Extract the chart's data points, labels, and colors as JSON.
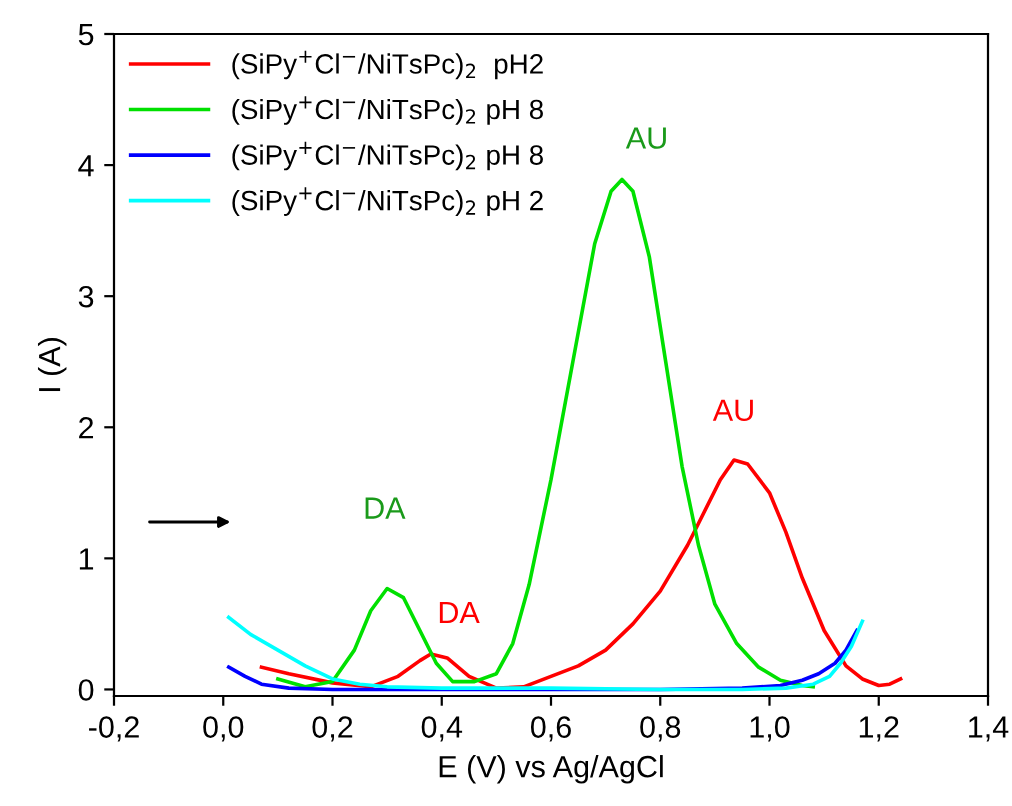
{
  "chart_data": {
    "type": "line",
    "xlabel": "E (V) vs Ag/AgCl",
    "ylabel": "I (A)",
    "xlim": [
      -0.2,
      1.4
    ],
    "ylim": [
      -0.05,
      5
    ],
    "xticks": [
      {
        "value": -0.2,
        "label": "-0,2"
      },
      {
        "value": 0.0,
        "label": "0,0"
      },
      {
        "value": 0.2,
        "label": "0,2"
      },
      {
        "value": 0.4,
        "label": "0,4"
      },
      {
        "value": 0.6,
        "label": "0,6"
      },
      {
        "value": 0.8,
        "label": "0,8"
      },
      {
        "value": 1.0,
        "label": "1,0"
      },
      {
        "value": 1.2,
        "label": "1,2"
      },
      {
        "value": 1.4,
        "label": "1,4"
      }
    ],
    "yticks": [
      0,
      1,
      2,
      3,
      4,
      5
    ],
    "grid": false,
    "legend": "top left",
    "marker": "none",
    "line_style": "solid",
    "series": [
      {
        "name": "(SiPy$^{+}$Cl$^{−}$/NiTsPc)$_{2}$  pH2",
        "color": "#ff0000",
        "x": [
          0.07,
          0.12,
          0.2,
          0.27,
          0.32,
          0.36,
          0.38,
          0.41,
          0.45,
          0.5,
          0.55,
          0.6,
          0.65,
          0.7,
          0.75,
          0.8,
          0.85,
          0.88,
          0.91,
          0.935,
          0.96,
          1.0,
          1.03,
          1.06,
          1.1,
          1.14,
          1.17,
          1.2,
          1.22,
          1.24
        ],
        "values": [
          0.17,
          0.12,
          0.05,
          0.02,
          0.1,
          0.22,
          0.27,
          0.24,
          0.1,
          0.01,
          0.02,
          0.1,
          0.18,
          0.3,
          0.5,
          0.75,
          1.1,
          1.35,
          1.6,
          1.75,
          1.72,
          1.5,
          1.2,
          0.85,
          0.45,
          0.18,
          0.08,
          0.03,
          0.04,
          0.08
        ]
      },
      {
        "name": "(SiPy$^{+}$Cl$^{−}$/NiTsPc)$_{2}$ pH 8",
        "color": "#00e000",
        "x": [
          0.1,
          0.15,
          0.2,
          0.24,
          0.27,
          0.3,
          0.33,
          0.36,
          0.39,
          0.42,
          0.46,
          0.5,
          0.53,
          0.56,
          0.6,
          0.64,
          0.68,
          0.71,
          0.73,
          0.75,
          0.78,
          0.81,
          0.84,
          0.87,
          0.9,
          0.94,
          0.98,
          1.02,
          1.06,
          1.08
        ],
        "values": [
          0.08,
          0.02,
          0.06,
          0.3,
          0.6,
          0.77,
          0.7,
          0.45,
          0.2,
          0.06,
          0.06,
          0.12,
          0.35,
          0.8,
          1.6,
          2.5,
          3.4,
          3.8,
          3.89,
          3.8,
          3.3,
          2.5,
          1.7,
          1.1,
          0.65,
          0.35,
          0.17,
          0.07,
          0.03,
          0.02
        ]
      },
      {
        "name": "(SiPy$^{+}$Cl$^{−}$/NiTsPc)$_{2}$ pH 8",
        "color": "#0000ff",
        "x": [
          0.01,
          0.04,
          0.07,
          0.12,
          0.2,
          0.4,
          0.6,
          0.8,
          0.95,
          1.02,
          1.06,
          1.09,
          1.12,
          1.14,
          1.16
        ],
        "values": [
          0.17,
          0.1,
          0.04,
          0.01,
          0.0,
          0.0,
          0.0,
          0.0,
          0.01,
          0.03,
          0.07,
          0.12,
          0.2,
          0.3,
          0.45
        ]
      },
      {
        "name": "(SiPy$^{+}$Cl$^{−}$/NiTsPc)$_{2}$ pH 2",
        "color": "#00ffff",
        "x": [
          0.01,
          0.05,
          0.1,
          0.15,
          0.2,
          0.25,
          0.3,
          0.4,
          0.6,
          0.8,
          0.95,
          1.03,
          1.08,
          1.11,
          1.13,
          1.15,
          1.17
        ],
        "values": [
          0.55,
          0.42,
          0.3,
          0.18,
          0.08,
          0.04,
          0.02,
          0.01,
          0.01,
          0.0,
          0.0,
          0.01,
          0.04,
          0.1,
          0.2,
          0.33,
          0.52
        ]
      }
    ],
    "annotations": [
      {
        "text": "AU",
        "x": 0.73,
        "y": 3.89
      },
      {
        "text": "AU",
        "x": 0.935,
        "y": 1.75
      },
      {
        "text": "DA",
        "x": 0.3,
        "y": 0.77
      },
      {
        "text": "DA",
        "x": 0.38,
        "y": 0.27
      }
    ]
  }
}
